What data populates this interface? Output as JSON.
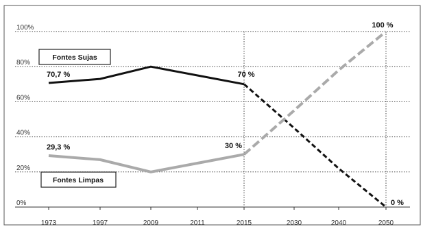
{
  "chart_data": {
    "type": "line",
    "categories": [
      "1973",
      "1997",
      "2009",
      "2011",
      "2015",
      "2030",
      "2040",
      "2050"
    ],
    "y_ticks": [
      "0%",
      "20%",
      "40%",
      "60%",
      "80%",
      "100%"
    ],
    "ylim": [
      0,
      100
    ],
    "grid": "horizontal dotted",
    "series": [
      {
        "name": "Fontes Sujas",
        "color": "#111111",
        "values": [
          70.7,
          73,
          80,
          75,
          70,
          null,
          null,
          null
        ],
        "projection": [
          null,
          null,
          null,
          null,
          70,
          45,
          22,
          0
        ]
      },
      {
        "name": "Fontes Limpas",
        "color": "#aaaaaa",
        "values": [
          29.3,
          27,
          20,
          25,
          30,
          null,
          null,
          null
        ],
        "projection": [
          null,
          null,
          null,
          null,
          30,
          55,
          78,
          100
        ]
      }
    ],
    "annotations": [
      {
        "text": "70,7 %",
        "series": 0,
        "index": 0
      },
      {
        "text": "70 %",
        "series": 0,
        "index": 4
      },
      {
        "text": "0 %",
        "series": 0,
        "index": 7
      },
      {
        "text": "29,3 %",
        "series": 1,
        "index": 0
      },
      {
        "text": "30 %",
        "series": 1,
        "index": 4
      },
      {
        "text": "100 %",
        "series": 1,
        "index": 7
      }
    ]
  }
}
